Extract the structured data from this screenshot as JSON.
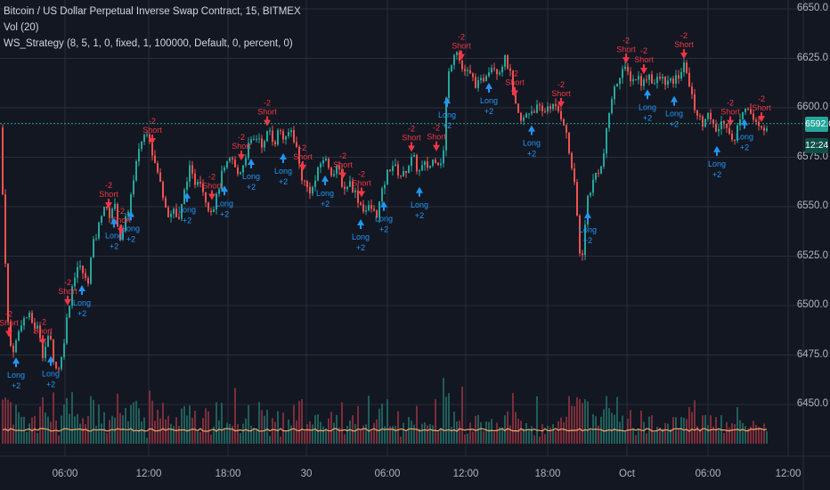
{
  "legend": {
    "symbol": "Bitcoin / US Dollar Perpetual Inverse Swap Contract, 15, BITMEX",
    "volume": "Vol (20)",
    "strategy": "WS_Strategy (8, 5, 1, 0, fixed, 1, 100000, Default, 0, percent, 0)"
  },
  "last_price_label": "6592.0",
  "countdown_label": "12:24",
  "colors": {
    "background": "#131722",
    "up": "#26a69a",
    "down": "#ef5350",
    "short_signal": "#f23645",
    "long_signal": "#2196f3",
    "volume_ma": "#f5a46b"
  },
  "chart_data": {
    "type": "candlestick",
    "title": "Bitcoin / US Dollar Perpetual Inverse Swap Contract, 15, BITMEX",
    "interval": "15",
    "ylim": [
      6425,
      6650
    ],
    "y_ticks": [
      "6650.0",
      "6625.0",
      "6600.0",
      "6575.0",
      "6550.0",
      "6525.0",
      "6500.0",
      "6475.0",
      "6450.0"
    ],
    "x_ticks": [
      "06:00",
      "12:00",
      "18:00",
      "30",
      "06:00",
      "12:00",
      "18:00",
      "Oct",
      "06:00",
      "12:00"
    ],
    "last_price": 6592.0,
    "close_path": [
      [
        0,
        6590
      ],
      [
        4,
        6545
      ],
      [
        10,
        6480
      ],
      [
        16,
        6478
      ],
      [
        24,
        6492
      ],
      [
        32,
        6495
      ],
      [
        38,
        6490
      ],
      [
        44,
        6488
      ],
      [
        48,
        6476
      ],
      [
        56,
        6485
      ],
      [
        62,
        6468
      ],
      [
        68,
        6470
      ],
      [
        74,
        6490
      ],
      [
        80,
        6508
      ],
      [
        86,
        6520
      ],
      [
        92,
        6518
      ],
      [
        98,
        6510
      ],
      [
        104,
        6530
      ],
      [
        110,
        6538
      ],
      [
        116,
        6552
      ],
      [
        122,
        6545
      ],
      [
        128,
        6552
      ],
      [
        136,
        6532
      ],
      [
        142,
        6545
      ],
      [
        150,
        6562
      ],
      [
        156,
        6580
      ],
      [
        160,
        6584
      ],
      [
        166,
        6590
      ],
      [
        172,
        6575
      ],
      [
        178,
        6565
      ],
      [
        184,
        6555
      ],
      [
        190,
        6545
      ],
      [
        196,
        6550
      ],
      [
        200,
        6540
      ],
      [
        206,
        6555
      ],
      [
        212,
        6570
      ],
      [
        218,
        6562
      ],
      [
        224,
        6566
      ],
      [
        230,
        6555
      ],
      [
        236,
        6548
      ],
      [
        242,
        6552
      ],
      [
        248,
        6565
      ],
      [
        254,
        6570
      ],
      [
        260,
        6575
      ],
      [
        266,
        6566
      ],
      [
        272,
        6570
      ],
      [
        278,
        6580
      ],
      [
        284,
        6583
      ],
      [
        290,
        6586
      ],
      [
        296,
        6580
      ],
      [
        302,
        6590
      ],
      [
        308,
        6582
      ],
      [
        314,
        6590
      ],
      [
        320,
        6582
      ],
      [
        326,
        6590
      ],
      [
        332,
        6582
      ],
      [
        338,
        6566
      ],
      [
        344,
        6560
      ],
      [
        350,
        6558
      ],
      [
        356,
        6566
      ],
      [
        362,
        6575
      ],
      [
        368,
        6572
      ],
      [
        374,
        6566
      ],
      [
        380,
        6570
      ],
      [
        386,
        6558
      ],
      [
        392,
        6563
      ],
      [
        398,
        6558
      ],
      [
        404,
        6552
      ],
      [
        410,
        6548
      ],
      [
        416,
        6550
      ],
      [
        422,
        6545
      ],
      [
        428,
        6555
      ],
      [
        434,
        6566
      ],
      [
        440,
        6572
      ],
      [
        446,
        6568
      ],
      [
        452,
        6565
      ],
      [
        458,
        6571
      ],
      [
        464,
        6575
      ],
      [
        470,
        6567
      ],
      [
        476,
        6571
      ],
      [
        482,
        6570
      ],
      [
        488,
        6575
      ],
      [
        494,
        6572
      ],
      [
        498,
        6578
      ],
      [
        502,
        6613
      ],
      [
        506,
        6622
      ],
      [
        512,
        6632
      ],
      [
        518,
        6620
      ],
      [
        524,
        6618
      ],
      [
        530,
        6615
      ],
      [
        536,
        6611
      ],
      [
        542,
        6614
      ],
      [
        548,
        6620
      ],
      [
        554,
        6622
      ],
      [
        560,
        6618
      ],
      [
        566,
        6625
      ],
      [
        572,
        6620
      ],
      [
        576,
        6605
      ],
      [
        580,
        6598
      ],
      [
        586,
        6592
      ],
      [
        592,
        6598
      ],
      [
        598,
        6599
      ],
      [
        604,
        6600
      ],
      [
        610,
        6597
      ],
      [
        616,
        6602
      ],
      [
        622,
        6600
      ],
      [
        628,
        6598
      ],
      [
        634,
        6592
      ],
      [
        638,
        6580
      ],
      [
        644,
        6565
      ],
      [
        648,
        6545
      ],
      [
        652,
        6520
      ],
      [
        656,
        6535
      ],
      [
        660,
        6555
      ],
      [
        664,
        6560
      ],
      [
        670,
        6568
      ],
      [
        676,
        6570
      ],
      [
        680,
        6584
      ],
      [
        686,
        6604
      ],
      [
        692,
        6612
      ],
      [
        698,
        6620
      ],
      [
        704,
        6618
      ],
      [
        710,
        6614
      ],
      [
        716,
        6616
      ],
      [
        722,
        6612
      ],
      [
        728,
        6618
      ],
      [
        734,
        6612
      ],
      [
        740,
        6615
      ],
      [
        746,
        6614
      ],
      [
        752,
        6612
      ],
      [
        758,
        6614
      ],
      [
        764,
        6618
      ],
      [
        770,
        6622
      ],
      [
        776,
        6606
      ],
      [
        782,
        6598
      ],
      [
        788,
        6592
      ],
      [
        794,
        6598
      ],
      [
        800,
        6590
      ],
      [
        806,
        6588
      ],
      [
        812,
        6595
      ],
      [
        818,
        6590
      ],
      [
        824,
        6580
      ],
      [
        830,
        6595
      ],
      [
        836,
        6602
      ],
      [
        842,
        6598
      ],
      [
        848,
        6592
      ],
      [
        854,
        6588
      ],
      [
        860,
        6592
      ]
    ],
    "signals_short": [
      {
        "x": 10,
        "label": "Short",
        "qty": "-2"
      },
      {
        "x": 48,
        "label": "Short",
        "qty": "-2"
      },
      {
        "x": 76,
        "label": "Short",
        "qty": "-2"
      },
      {
        "x": 122,
        "label": "Short",
        "qty": "-2"
      },
      {
        "x": 136,
        "label": "Short",
        "qty": "-2"
      },
      {
        "x": 171,
        "label": "Short",
        "qty": "-2"
      },
      {
        "x": 238,
        "label": "Short",
        "qty": "-2"
      },
      {
        "x": 271,
        "label": "Short",
        "qty": "-2"
      },
      {
        "x": 300,
        "label": "Short",
        "qty": "-2"
      },
      {
        "x": 340,
        "label": "Short",
        "qty": "-2"
      },
      {
        "x": 385,
        "label": "Short",
        "qty": "-2"
      },
      {
        "x": 406,
        "label": "Short",
        "qty": "-2"
      },
      {
        "x": 462,
        "label": "Short",
        "qty": "-2"
      },
      {
        "x": 490,
        "label": "Short",
        "qty": "-2"
      },
      {
        "x": 518,
        "label": "Short",
        "qty": "-2"
      },
      {
        "x": 578,
        "label": "Short",
        "qty": "-2"
      },
      {
        "x": 630,
        "label": "Short",
        "qty": "-2"
      },
      {
        "x": 703,
        "label": "Short",
        "qty": "-2"
      },
      {
        "x": 723,
        "label": "Short",
        "qty": "-2"
      },
      {
        "x": 768,
        "label": "Short",
        "qty": "-2"
      },
      {
        "x": 820,
        "label": "Short",
        "qty": "-2"
      },
      {
        "x": 855,
        "label": "Short",
        "qty": "-2"
      }
    ],
    "signals_long": [
      {
        "x": 18,
        "label": "Long",
        "qty": "+2"
      },
      {
        "x": 57,
        "label": "Long",
        "qty": "+2"
      },
      {
        "x": 92,
        "label": "Long",
        "qty": "+2"
      },
      {
        "x": 128,
        "label": "Long",
        "qty": "+2"
      },
      {
        "x": 147,
        "label": "Long",
        "qty": "+2"
      },
      {
        "x": 210,
        "label": "Long",
        "qty": "+2"
      },
      {
        "x": 252,
        "label": "Long",
        "qty": "+2"
      },
      {
        "x": 282,
        "label": "Long",
        "qty": "+2"
      },
      {
        "x": 318,
        "label": "Long",
        "qty": "+2"
      },
      {
        "x": 365,
        "label": "Long",
        "qty": "+2"
      },
      {
        "x": 405,
        "label": "Long",
        "qty": "+2"
      },
      {
        "x": 431,
        "label": "Long",
        "qty": "+2"
      },
      {
        "x": 471,
        "label": "Long",
        "qty": "+2"
      },
      {
        "x": 502,
        "label": "Long",
        "qty": "+2"
      },
      {
        "x": 549,
        "label": "Long",
        "qty": "+2"
      },
      {
        "x": 597,
        "label": "Long",
        "qty": "+2"
      },
      {
        "x": 660,
        "label": "Long",
        "qty": "+2"
      },
      {
        "x": 727,
        "label": "Long",
        "qty": "+2"
      },
      {
        "x": 757,
        "label": "Long",
        "qty": "+2"
      },
      {
        "x": 805,
        "label": "Long",
        "qty": "+2"
      },
      {
        "x": 836,
        "label": "Long",
        "qty": "+2"
      }
    ]
  }
}
